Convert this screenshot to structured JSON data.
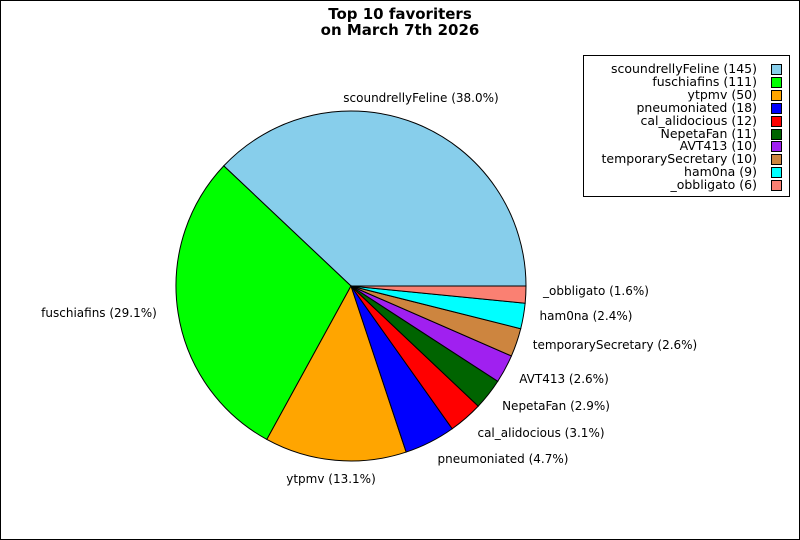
{
  "chart_data": {
    "type": "pie",
    "title_lines": [
      "Top 10 favoriters",
      "on March 7th 2026"
    ],
    "legend_position": "top-right",
    "slices": [
      {
        "name": "scoundrellyFeline",
        "count": 145,
        "percent": 38.0,
        "label": "scoundrellyFeline (38.0%)",
        "legend": "scoundrellyFeline (145)",
        "color": "#87ceeb"
      },
      {
        "name": "fuschiafins",
        "count": 111,
        "percent": 29.1,
        "label": "fuschiafins (29.1%)",
        "legend": "fuschiafins (111)",
        "color": "#00ff00"
      },
      {
        "name": "ytpmv",
        "count": 50,
        "percent": 13.1,
        "label": "ytpmv (13.1%)",
        "legend": "ytpmv (50)",
        "color": "#ffa500"
      },
      {
        "name": "pneumoniated",
        "count": 18,
        "percent": 4.7,
        "label": "pneumoniated (4.7%)",
        "legend": "pneumoniated (18)",
        "color": "#0000ff"
      },
      {
        "name": "cal_alidocious",
        "count": 12,
        "percent": 3.1,
        "label": "cal_alidocious (3.1%)",
        "legend": "cal_alidocious (12)",
        "color": "#ff0000"
      },
      {
        "name": "NepetaFan",
        "count": 11,
        "percent": 2.9,
        "label": "NepetaFan (2.9%)",
        "legend": "NepetaFan (11)",
        "color": "#006400"
      },
      {
        "name": "AVT413",
        "count": 10,
        "percent": 2.6,
        "label": "AVT413 (2.6%)",
        "legend": "AVT413 (10)",
        "color": "#a020f0"
      },
      {
        "name": "temporarySecretary",
        "count": 10,
        "percent": 2.6,
        "label": "temporarySecretary (2.6%)",
        "legend": "temporarySecretary (10)",
        "color": "#cd853f"
      },
      {
        "name": "ham0na",
        "count": 9,
        "percent": 2.4,
        "label": "ham0na (2.4%)",
        "legend": "ham0na (9)",
        "color": "#00ffff"
      },
      {
        "name": "_obbligato",
        "count": 6,
        "percent": 1.6,
        "label": "_obbligato (1.6%)",
        "legend": "_obbligato (6)",
        "color": "#fa8072"
      }
    ]
  }
}
